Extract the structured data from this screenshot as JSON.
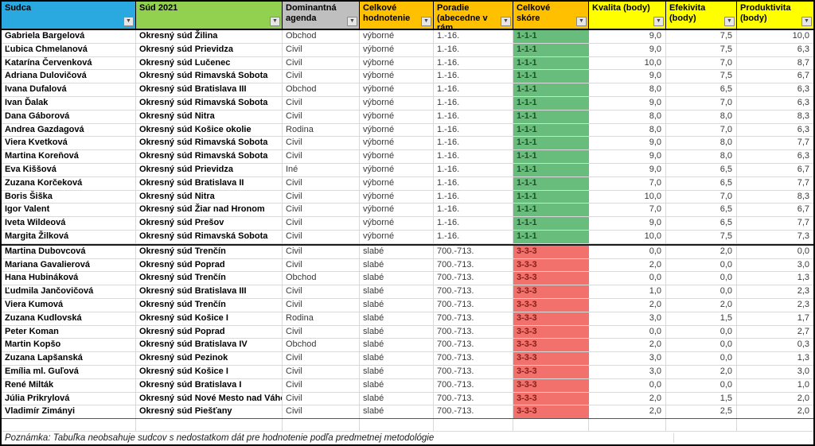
{
  "colors": {
    "score_good_bg": "#69BD7C",
    "score_good_fg": "#1E4F26",
    "score_bad_bg": "#F3716D",
    "score_bad_fg": "#84201B",
    "header_blue": "#29A9E0",
    "header_green": "#92D050",
    "header_gray": "#BFBFBF",
    "header_orange": "#FFC000",
    "header_yellow": "#FFFF00"
  },
  "header": {
    "columns": [
      {
        "id": "sudca",
        "label": "Sudca",
        "bg": "#29A9E0"
      },
      {
        "id": "sud",
        "label": "Súd 2021",
        "bg": "#92D050"
      },
      {
        "id": "agenda",
        "label": "Dominantná agenda",
        "bg": "#BFBFBF"
      },
      {
        "id": "hodnotenie",
        "label": "Celkové hodnotenie",
        "bg": "#FFC000"
      },
      {
        "id": "poradie",
        "label": "Poradie (abecedne v rám",
        "bg": "#FFC000"
      },
      {
        "id": "skore",
        "label": "Celkové skóre",
        "bg": "#FFC000"
      },
      {
        "id": "kvalita",
        "label": "Kvalita (body)",
        "bg": "#FFFF00"
      },
      {
        "id": "efektivita",
        "label": "Efekivita (body)",
        "bg": "#FFFF00"
      },
      {
        "id": "produktivita",
        "label": "Produktivita (body)",
        "bg": "#FFFF00"
      }
    ],
    "filter_icon": "▼"
  },
  "table": {
    "rows": [
      {
        "name": "Gabriela Bargelová",
        "court": "Okresný súd Žilina",
        "agenda": "Obchod",
        "rating": "výborné",
        "rank": "1.-16.",
        "score": "1-1-1",
        "kvalita": "9,0",
        "efektivita": "7,5",
        "produktivita": "10,0"
      },
      {
        "name": "Ľubica Chmelanová",
        "court": "Okresný súd Prievidza",
        "agenda": "Civil",
        "rating": "výborné",
        "rank": "1.-16.",
        "score": "1-1-1",
        "kvalita": "9,0",
        "efektivita": "7,5",
        "produktivita": "6,3"
      },
      {
        "name": "Katarína Červenková",
        "court": "Okresný súd Lučenec",
        "agenda": "Civil",
        "rating": "výborné",
        "rank": "1.-16.",
        "score": "1-1-1",
        "kvalita": "10,0",
        "efektivita": "7,0",
        "produktivita": "8,7"
      },
      {
        "name": "Adriana Dulovičová",
        "court": "Okresný súd Rimavská Sobota",
        "agenda": "Civil",
        "rating": "výborné",
        "rank": "1.-16.",
        "score": "1-1-1",
        "kvalita": "9,0",
        "efektivita": "7,5",
        "produktivita": "6,7"
      },
      {
        "name": "Ivana Dufalová",
        "court": "Okresný súd Bratislava III",
        "agenda": "Obchod",
        "rating": "výborné",
        "rank": "1.-16.",
        "score": "1-1-1",
        "kvalita": "8,0",
        "efektivita": "6,5",
        "produktivita": "6,3"
      },
      {
        "name": "Ivan Ďalak",
        "court": "Okresný súd Rimavská Sobota",
        "agenda": "Civil",
        "rating": "výborné",
        "rank": "1.-16.",
        "score": "1-1-1",
        "kvalita": "9,0",
        "efektivita": "7,0",
        "produktivita": "6,3"
      },
      {
        "name": "Dana Gáborová",
        "court": "Okresný súd Nitra",
        "agenda": "Civil",
        "rating": "výborné",
        "rank": "1.-16.",
        "score": "1-1-1",
        "kvalita": "8,0",
        "efektivita": "8,0",
        "produktivita": "8,3"
      },
      {
        "name": "Andrea Gazdagová",
        "court": "Okresný súd Košice okolie",
        "agenda": "Rodina",
        "rating": "výborné",
        "rank": "1.-16.",
        "score": "1-1-1",
        "kvalita": "8,0",
        "efektivita": "7,0",
        "produktivita": "6,3"
      },
      {
        "name": "Viera Kvetková",
        "court": "Okresný súd Rimavská Sobota",
        "agenda": "Civil",
        "rating": "výborné",
        "rank": "1.-16.",
        "score": "1-1-1",
        "kvalita": "9,0",
        "efektivita": "8,0",
        "produktivita": "7,7"
      },
      {
        "name": "Martina Koreňová",
        "court": "Okresný súd Rimavská Sobota",
        "agenda": "Civil",
        "rating": "výborné",
        "rank": "1.-16.",
        "score": "1-1-1",
        "kvalita": "9,0",
        "efektivita": "8,0",
        "produktivita": "6,3"
      },
      {
        "name": "Eva Kiššová",
        "court": "Okresný súd Prievidza",
        "agenda": "Iné",
        "rating": "výborné",
        "rank": "1.-16.",
        "score": "1-1-1",
        "kvalita": "9,0",
        "efektivita": "6,5",
        "produktivita": "6,7"
      },
      {
        "name": "Zuzana Korčeková",
        "court": "Okresný súd Bratislava II",
        "agenda": "Civil",
        "rating": "výborné",
        "rank": "1.-16.",
        "score": "1-1-1",
        "kvalita": "7,0",
        "efektivita": "6,5",
        "produktivita": "7,7"
      },
      {
        "name": "Boris Šiška",
        "court": "Okresný súd Nitra",
        "agenda": "Civil",
        "rating": "výborné",
        "rank": "1.-16.",
        "score": "1-1-1",
        "kvalita": "10,0",
        "efektivita": "7,0",
        "produktivita": "8,3"
      },
      {
        "name": "Igor Valent",
        "court": "Okresný súd Žiar nad Hronom",
        "agenda": "Civil",
        "rating": "výborné",
        "rank": "1.-16.",
        "score": "1-1-1",
        "kvalita": "7,0",
        "efektivita": "6,5",
        "produktivita": "6,7"
      },
      {
        "name": "Iveta Wildeová",
        "court": "Okresný súd Prešov",
        "agenda": "Civil",
        "rating": "výborné",
        "rank": "1.-16.",
        "score": "1-1-1",
        "kvalita": "9,0",
        "efektivita": "6,5",
        "produktivita": "7,7"
      },
      {
        "name": "Margita Žilková",
        "court": "Okresný súd Rimavská Sobota",
        "agenda": "Civil",
        "rating": "výborné",
        "rank": "1.-16.",
        "score": "1-1-1",
        "kvalita": "10,0",
        "efektivita": "7,5",
        "produktivita": "7,3"
      },
      {
        "name": "Martina Dubovcová",
        "court": "Okresný súd Trenčín",
        "agenda": "Civil",
        "rating": "slabé",
        "rank": "700.-713.",
        "score": "3-3-3",
        "kvalita": "0,0",
        "efektivita": "2,0",
        "produktivita": "0,0"
      },
      {
        "name": "Mariana Gavalierová",
        "court": "Okresný súd Poprad",
        "agenda": "Civil",
        "rating": "slabé",
        "rank": "700.-713.",
        "score": "3-3-3",
        "kvalita": "2,0",
        "efektivita": "0,0",
        "produktivita": "3,0"
      },
      {
        "name": "Hana Hubináková",
        "court": "Okresný súd Trenčín",
        "agenda": "Obchod",
        "rating": "slabé",
        "rank": "700.-713.",
        "score": "3-3-3",
        "kvalita": "0,0",
        "efektivita": "0,0",
        "produktivita": "1,3"
      },
      {
        "name": "Ľudmila Jančovičová",
        "court": "Okresný súd Bratislava III",
        "agenda": "Civil",
        "rating": "slabé",
        "rank": "700.-713.",
        "score": "3-3-3",
        "kvalita": "1,0",
        "efektivita": "0,0",
        "produktivita": "2,3"
      },
      {
        "name": "Viera Kumová",
        "court": "Okresný súd Trenčín",
        "agenda": "Civil",
        "rating": "slabé",
        "rank": "700.-713.",
        "score": "3-3-3",
        "kvalita": "2,0",
        "efektivita": "2,0",
        "produktivita": "2,3"
      },
      {
        "name": "Zuzana Kudlovská",
        "court": "Okresný súd Košice I",
        "agenda": "Rodina",
        "rating": "slabé",
        "rank": "700.-713.",
        "score": "3-3-3",
        "kvalita": "3,0",
        "efektivita": "1,5",
        "produktivita": "1,7"
      },
      {
        "name": "Peter Koman",
        "court": "Okresný súd Poprad",
        "agenda": "Civil",
        "rating": "slabé",
        "rank": "700.-713.",
        "score": "3-3-3",
        "kvalita": "0,0",
        "efektivita": "0,0",
        "produktivita": "2,7"
      },
      {
        "name": "Martin Kopšo",
        "court": "Okresný súd Bratislava IV",
        "agenda": "Obchod",
        "rating": "slabé",
        "rank": "700.-713.",
        "score": "3-3-3",
        "kvalita": "2,0",
        "efektivita": "0,0",
        "produktivita": "0,3"
      },
      {
        "name": "Zuzana Lapšanská",
        "court": "Okresný súd Pezinok",
        "agenda": "Civil",
        "rating": "slabé",
        "rank": "700.-713.",
        "score": "3-3-3",
        "kvalita": "3,0",
        "efektivita": "0,0",
        "produktivita": "1,3"
      },
      {
        "name": "Emília ml. Guľová",
        "court": "Okresný súd Košice I",
        "agenda": "Civil",
        "rating": "slabé",
        "rank": "700.-713.",
        "score": "3-3-3",
        "kvalita": "3,0",
        "efektivita": "2,0",
        "produktivita": "3,0"
      },
      {
        "name": "René Milták",
        "court": "Okresný súd Bratislava I",
        "agenda": "Civil",
        "rating": "slabé",
        "rank": "700.-713.",
        "score": "3-3-3",
        "kvalita": "0,0",
        "efektivita": "0,0",
        "produktivita": "1,0"
      },
      {
        "name": "Júlia Prikrylová",
        "court": "Okresný súd Nové Mesto nad Váho",
        "agenda": "Civil",
        "rating": "slabé",
        "rank": "700.-713.",
        "score": "3-3-3",
        "kvalita": "2,0",
        "efektivita": "1,5",
        "produktivita": "2,0"
      },
      {
        "name": "Vladimír Zimányi",
        "court": "Okresný súd Piešťany",
        "agenda": "Civil",
        "rating": "slabé",
        "rank": "700.-713.",
        "score": "3-3-3",
        "kvalita": "2,0",
        "efektivita": "2,5",
        "produktivita": "2,0"
      }
    ]
  },
  "note": "Poznámka: Tabuľka neobsahuje sudcov s nedostatkom dát pre hodnotenie podľa predmetnej metodológie"
}
